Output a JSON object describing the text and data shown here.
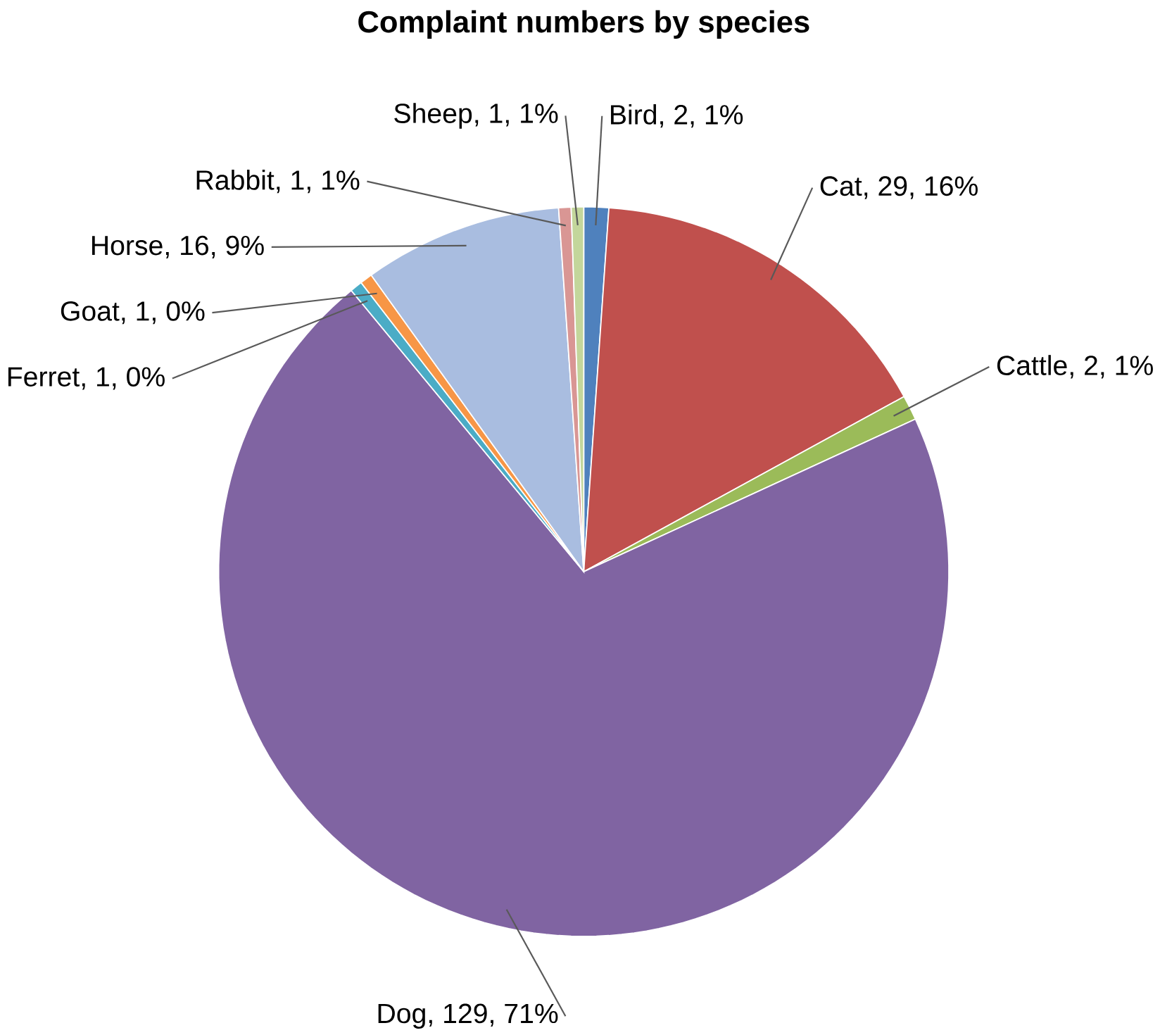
{
  "chart_data": {
    "type": "pie",
    "title": "Complaint numbers by species",
    "categories": [
      "Bird",
      "Cat",
      "Cattle",
      "Dog",
      "Ferret",
      "Goat",
      "Horse",
      "Rabbit",
      "Sheep"
    ],
    "values": [
      2,
      29,
      2,
      129,
      1,
      1,
      16,
      1,
      1
    ],
    "colors": [
      "#4f81bd",
      "#c0504d",
      "#9bbb59",
      "#8064a2",
      "#4bacc6",
      "#f79646",
      "#a9bde0",
      "#d99694",
      "#c3d69b"
    ],
    "value_labels": [
      ", 2, 1%",
      ", 29, 16%",
      ", 2, 1%",
      ", 129, 71%",
      ", 1, 0%",
      ", 1, 0%",
      ", 16, 9%",
      ", 1, 1%",
      ", 1, 1%"
    ]
  }
}
